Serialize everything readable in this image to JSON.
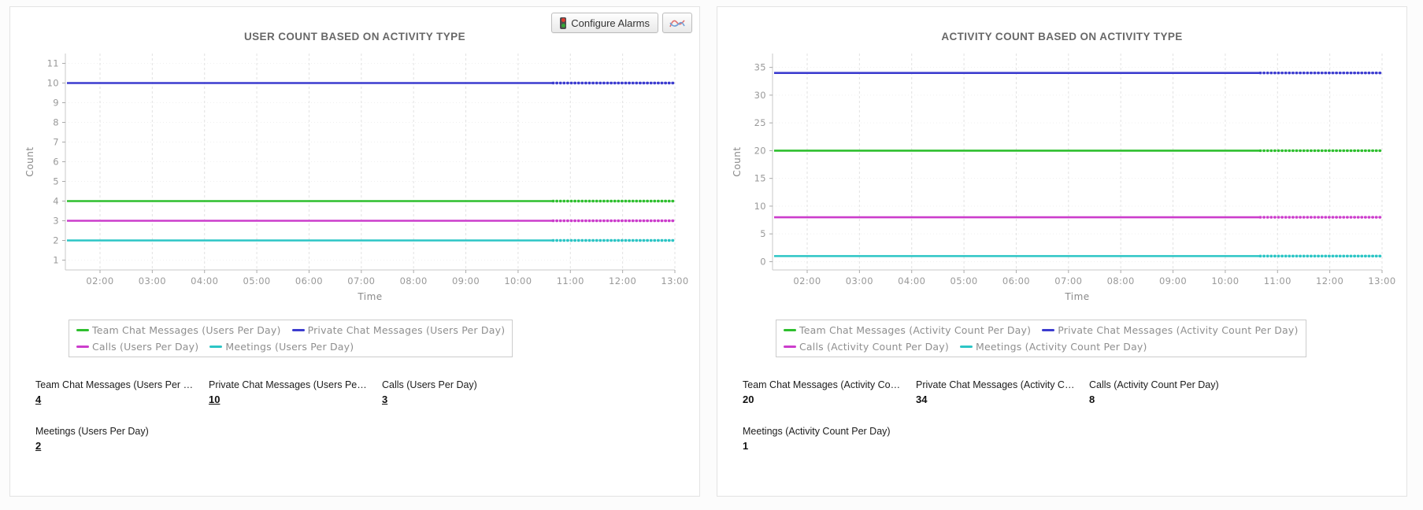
{
  "page": {
    "background": "#fcfcfc",
    "panel_border": "#e3e3e3"
  },
  "toolbar": {
    "configure_alarms_label": "Configure Alarms"
  },
  "panels": [
    {
      "title": "USER COUNT BASED ON ACTIVITY TYPE",
      "stats": [
        {
          "label": "Team Chat Messages (Users Per Day)",
          "value": "4"
        },
        {
          "label": "Private Chat Messages (Users Per Day)",
          "value": "10"
        },
        {
          "label": "Calls (Users Per Day)",
          "value": "3"
        },
        {
          "label": "Meetings (Users Per Day)",
          "value": "2"
        }
      ]
    },
    {
      "title": "ACTIVITY COUNT BASED ON ACTIVITY TYPE",
      "stats": [
        {
          "label": "Team Chat Messages (Activity Count Per Day)",
          "value": "20"
        },
        {
          "label": "Private Chat Messages (Activity Count Per Day)",
          "value": "34"
        },
        {
          "label": "Calls (Activity Count Per Day)",
          "value": "8"
        },
        {
          "label": "Meetings (Activity Count Per Day)",
          "value": "1"
        }
      ]
    }
  ],
  "chart_data": [
    {
      "type": "line",
      "title": "USER COUNT BASED ON ACTIVITY TYPE",
      "xlabel": "Time",
      "ylabel": "Count",
      "x_ticks": [
        "02:00",
        "03:00",
        "04:00",
        "05:00",
        "06:00",
        "07:00",
        "08:00",
        "09:00",
        "10:00",
        "11:00",
        "12:00",
        "13:00"
      ],
      "y_ticks": [
        1,
        2,
        3,
        4,
        5,
        6,
        7,
        8,
        9,
        10,
        11
      ],
      "ylim": [
        0.5,
        11.5
      ],
      "grid": true,
      "legend_position": "bottom",
      "series": [
        {
          "name": "Team Chat Messages (Users Per Day)",
          "color": "#2ebf2e",
          "value": 4
        },
        {
          "name": "Private Chat Messages (Users Per Day)",
          "color": "#3c3ccf",
          "value": 10
        },
        {
          "name": "Calls (Users Per Day)",
          "color": "#cc3dcc",
          "value": 3
        },
        {
          "name": "Meetings (Users Per Day)",
          "color": "#2cc5c5",
          "value": 2
        }
      ]
    },
    {
      "type": "line",
      "title": "ACTIVITY COUNT BASED ON ACTIVITY TYPE",
      "xlabel": "Time",
      "ylabel": "Count",
      "x_ticks": [
        "02:00",
        "03:00",
        "04:00",
        "05:00",
        "06:00",
        "07:00",
        "08:00",
        "09:00",
        "10:00",
        "11:00",
        "12:00",
        "13:00"
      ],
      "y_ticks": [
        0,
        5,
        10,
        15,
        20,
        25,
        30,
        35
      ],
      "ylim": [
        -1.5,
        37.5
      ],
      "grid": true,
      "legend_position": "bottom",
      "series": [
        {
          "name": "Team Chat Messages (Activity Count Per Day)",
          "color": "#2ebf2e",
          "value": 20
        },
        {
          "name": "Private Chat Messages (Activity Count Per Day)",
          "color": "#3c3ccf",
          "value": 34
        },
        {
          "name": "Calls (Activity Count Per Day)",
          "color": "#cc3dcc",
          "value": 8
        },
        {
          "name": "Meetings (Activity Count Per Day)",
          "color": "#2cc5c5",
          "value": 1
        }
      ]
    }
  ]
}
